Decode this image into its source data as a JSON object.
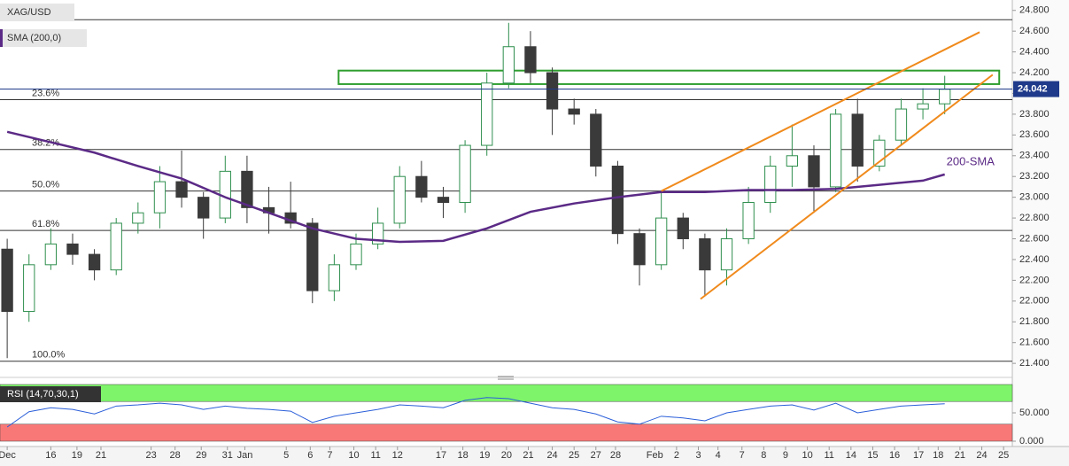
{
  "chart_data": [
    {
      "type": "candlestick",
      "title": "XAG/USD",
      "indicator_label": "SMA (200,0)",
      "annotation": "200-SMA",
      "xlim": [
        -0.33,
        46.1
      ],
      "ylim": [
        21.35,
        24.9
      ],
      "yticks": [
        {
          "value": 21.4,
          "label": "21.400"
        },
        {
          "value": 21.6,
          "label": "21.600"
        },
        {
          "value": 21.8,
          "label": "21.800"
        },
        {
          "value": 22,
          "label": "22.000"
        },
        {
          "value": 22.2,
          "label": "22.200"
        },
        {
          "value": 22.4,
          "label": "22.400"
        },
        {
          "value": 22.6,
          "label": "22.600"
        },
        {
          "value": 22.8,
          "label": "22.800"
        },
        {
          "value": 23,
          "label": "23.000"
        },
        {
          "value": 23.2,
          "label": "23.200"
        },
        {
          "value": 23.4,
          "label": "23.400"
        },
        {
          "value": 23.6,
          "label": "23.600"
        },
        {
          "value": 23.8,
          "label": "23.800"
        },
        {
          "value": 24,
          "label": "24.000"
        },
        {
          "value": 24.2,
          "label": "24.200"
        },
        {
          "value": 24.4,
          "label": "24.400"
        },
        {
          "value": 24.6,
          "label": "24.600"
        },
        {
          "value": 24.8,
          "label": "24.800"
        }
      ],
      "xticks": [
        {
          "value": 0,
          "label": "Dec"
        },
        {
          "value": 2.0,
          "label": "16"
        },
        {
          "value": 3.2,
          "label": "19"
        },
        {
          "value": 4.3,
          "label": "21"
        },
        {
          "value": 6.6,
          "label": "23"
        },
        {
          "value": 7.7,
          "label": "28"
        },
        {
          "value": 8.9,
          "label": "29"
        },
        {
          "value": 10.1,
          "label": "31"
        },
        {
          "value": 10.9,
          "label": "Jan"
        },
        {
          "value": 12.8,
          "label": "5"
        },
        {
          "value": 13.9,
          "label": "6"
        },
        {
          "value": 14.8,
          "label": "7"
        },
        {
          "value": 15.9,
          "label": "10"
        },
        {
          "value": 16.9,
          "label": "11"
        },
        {
          "value": 17.9,
          "label": "12"
        },
        {
          "value": 19.9,
          "label": "17"
        },
        {
          "value": 20.9,
          "label": "18"
        },
        {
          "value": 21.9,
          "label": "19"
        },
        {
          "value": 22.9,
          "label": "20"
        },
        {
          "value": 23.9,
          "label": "21"
        },
        {
          "value": 25.0,
          "label": "24"
        },
        {
          "value": 26.0,
          "label": "25"
        },
        {
          "value": 27.0,
          "label": "27"
        },
        {
          "value": 27.9,
          "label": "28"
        },
        {
          "value": 29.7,
          "label": "Feb"
        },
        {
          "value": 30.7,
          "label": "2"
        },
        {
          "value": 31.7,
          "label": "3"
        },
        {
          "value": 32.6,
          "label": "4"
        },
        {
          "value": 33.7,
          "label": "7"
        },
        {
          "value": 34.7,
          "label": "8"
        },
        {
          "value": 35.7,
          "label": "9"
        },
        {
          "value": 36.7,
          "label": "10"
        },
        {
          "value": 37.7,
          "label": "11"
        },
        {
          "value": 38.7,
          "label": "14"
        },
        {
          "value": 39.7,
          "label": "15"
        },
        {
          "value": 40.7,
          "label": "16"
        },
        {
          "value": 41.8,
          "label": "17"
        },
        {
          "value": 42.7,
          "label": "18"
        },
        {
          "value": 43.7,
          "label": "21"
        },
        {
          "value": 44.7,
          "label": "24"
        },
        {
          "value": 45.7,
          "label": "25"
        }
      ],
      "x": [
        0,
        1,
        2,
        3,
        4,
        5,
        6,
        7,
        8,
        9,
        10,
        11,
        12,
        13,
        14,
        15,
        16,
        17,
        18,
        19,
        20,
        21,
        22,
        23,
        24,
        25,
        26,
        27,
        28,
        29,
        30,
        31,
        32,
        33,
        34,
        35,
        36,
        37,
        38,
        39,
        40,
        41,
        42,
        43
      ],
      "open": [
        22.5,
        21.9,
        22.35,
        22.55,
        22.45,
        22.3,
        22.75,
        22.85,
        23.15,
        23.0,
        22.8,
        23.25,
        22.9,
        22.85,
        22.75,
        22.1,
        22.35,
        22.55,
        22.75,
        23.2,
        23.0,
        22.95,
        23.5,
        24.1,
        24.45,
        24.2,
        23.85,
        23.8,
        23.3,
        22.65,
        22.35,
        22.8,
        22.6,
        22.3,
        22.6,
        22.95,
        23.3,
        23.4,
        23.1,
        23.8,
        23.3,
        23.55,
        23.85,
        23.9
      ],
      "high": [
        22.6,
        22.45,
        22.7,
        22.65,
        22.5,
        22.8,
        22.95,
        23.3,
        23.45,
        23.05,
        23.4,
        23.4,
        23.1,
        23.15,
        22.8,
        22.45,
        22.65,
        22.9,
        23.3,
        23.35,
        23.1,
        23.55,
        24.2,
        24.68,
        24.6,
        24.25,
        23.95,
        23.85,
        23.35,
        22.7,
        23.05,
        22.85,
        22.65,
        22.7,
        23.1,
        23.4,
        23.7,
        23.5,
        23.85,
        23.95,
        23.6,
        23.95,
        24.05,
        24.17
      ],
      "low": [
        21.45,
        21.8,
        22.3,
        22.35,
        22.2,
        22.25,
        22.65,
        22.7,
        22.9,
        22.6,
        22.75,
        22.75,
        22.65,
        22.7,
        21.98,
        22.0,
        22.3,
        22.5,
        22.7,
        22.95,
        22.8,
        22.85,
        23.4,
        24.05,
        24.1,
        23.6,
        23.7,
        23.2,
        22.55,
        22.15,
        22.3,
        22.5,
        22.05,
        22.15,
        22.55,
        22.85,
        23.1,
        22.85,
        23.05,
        23.15,
        23.25,
        23.5,
        23.75,
        23.8
      ],
      "close": [
        21.9,
        22.35,
        22.55,
        22.45,
        22.3,
        22.75,
        22.85,
        23.15,
        23.0,
        22.8,
        23.25,
        22.9,
        22.85,
        22.75,
        22.1,
        22.35,
        22.55,
        22.75,
        23.2,
        23.0,
        22.95,
        23.5,
        24.1,
        24.45,
        24.2,
        23.85,
        23.8,
        23.3,
        22.65,
        22.35,
        22.8,
        22.6,
        22.3,
        22.6,
        22.95,
        23.3,
        23.4,
        23.1,
        23.8,
        23.3,
        23.55,
        23.85,
        23.9,
        24.04
      ],
      "up_color": "#2f8f4e",
      "down_color": "#3a3a3a",
      "sma": {
        "color": "#5b2a86",
        "x": [
          0,
          2,
          4,
          6,
          8,
          10,
          12,
          14,
          16,
          18,
          20,
          22,
          24,
          26,
          28,
          30,
          32,
          34,
          36,
          38,
          40,
          42,
          43
        ],
        "values": [
          23.63,
          23.53,
          23.43,
          23.3,
          23.18,
          23.0,
          22.85,
          22.7,
          22.6,
          22.57,
          22.58,
          22.7,
          22.86,
          22.94,
          23.0,
          23.05,
          23.05,
          23.07,
          23.07,
          23.08,
          23.12,
          23.16,
          23.22
        ]
      },
      "levels": [
        {
          "value": 24.71,
          "label": null
        },
        {
          "value": 23.94,
          "label": "23.6%"
        },
        {
          "value": 23.46,
          "label": "38.2%"
        },
        {
          "value": 23.06,
          "label": "50.0%"
        },
        {
          "value": 22.68,
          "label": "61.8%"
        },
        {
          "value": 21.42,
          "label": "100.0%"
        }
      ],
      "zone": {
        "x": [
          15.2,
          45.5
        ],
        "y": [
          24.09,
          24.22
        ],
        "color": "#2e9e2e"
      },
      "trendlines": [
        {
          "x": [
            30.0,
            44.6
          ],
          "y": [
            23.06,
            24.59
          ]
        },
        {
          "x": [
            31.8,
            45.2
          ],
          "y": [
            22.02,
            24.18
          ]
        }
      ],
      "trend_color": "#f08a1c",
      "last_price": 24.042,
      "last_price_color": "#1f3a8a"
    },
    {
      "type": "line",
      "title": "RSI (14,70,30,1)",
      "ylim": [
        0,
        100
      ],
      "yticks": [
        {
          "value": 50,
          "label": "50.000"
        },
        {
          "value": 0,
          "label": "0.000"
        }
      ],
      "bands": [
        {
          "from": 70,
          "to": 100,
          "color": "#7ef46a"
        },
        {
          "from": 0,
          "to": 30,
          "color": "#f87878"
        }
      ],
      "color": "#2b5fd9",
      "x": [
        0,
        1,
        2,
        3,
        4,
        5,
        6,
        7,
        8,
        9,
        10,
        11,
        12,
        13,
        14,
        15,
        16,
        17,
        18,
        19,
        20,
        21,
        22,
        23,
        24,
        25,
        26,
        27,
        28,
        29,
        30,
        31,
        32,
        33,
        34,
        35,
        36,
        37,
        38,
        39,
        40,
        41,
        42,
        43
      ],
      "values": [
        25,
        52,
        59,
        56,
        48,
        62,
        64,
        67,
        64,
        56,
        62,
        58,
        56,
        53,
        33,
        44,
        50,
        56,
        64,
        62,
        59,
        72,
        77,
        75,
        67,
        59,
        56,
        48,
        34,
        30,
        44,
        41,
        36,
        50,
        56,
        62,
        64,
        55,
        67,
        50,
        56,
        62,
        64,
        66
      ]
    }
  ]
}
